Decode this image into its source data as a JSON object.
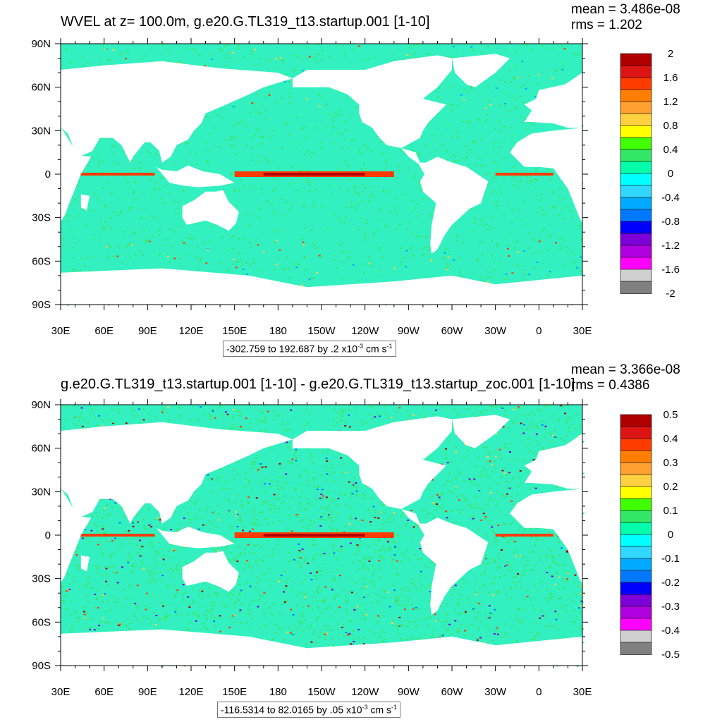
{
  "panels": [
    {
      "title": "WVEL at z= 100.0m, g.e20.G.TL319_t13.startup.001 [1-10]",
      "mean": "mean = 3.486e-08",
      "rms": "rms = 1.202",
      "range_text": "-302.759 to 192.687 by .2 x10",
      "range_exp": "-3",
      "range_unit": " cm s",
      "range_unit_exp": "-1",
      "colorbar_labels": [
        "2",
        "1.6",
        "1.2",
        "0.8",
        "0.4",
        "0",
        "-0.4",
        "-0.8",
        "-1.2",
        "-1.6",
        "-2"
      ]
    },
    {
      "title": "g.e20.G.TL319_t13.startup.001 [1-10] - g.e20.G.TL319_t13.startup_zoc.001 [1-10]",
      "mean": "mean = 3.366e-08",
      "rms": "rms = 0.4386",
      "range_text": "-116.5314 to 82.0165 by .05 x10",
      "range_exp": "-3",
      "range_unit": " cm s",
      "range_unit_exp": "-1",
      "colorbar_labels": [
        "0.5",
        "0.4",
        "0.3",
        "0.2",
        "0.1",
        "0",
        "-0.1",
        "-0.2",
        "-0.3",
        "-0.4",
        "-0.5"
      ]
    }
  ],
  "lat_labels": [
    "90N",
    "60N",
    "30N",
    "0",
    "30S",
    "60S",
    "90S"
  ],
  "lon_labels": [
    "30E",
    "60E",
    "90E",
    "120E",
    "150E",
    "180",
    "150W",
    "120W",
    "90W",
    "60W",
    "30W",
    "0",
    "30E"
  ],
  "colorbar_colors": [
    "#b00000",
    "#dc1414",
    "#ff3b00",
    "#ff7e00",
    "#ffa030",
    "#ffd040",
    "#ffff00",
    "#40ff00",
    "#33e866",
    "#00ffaa",
    "#00ffff",
    "#30d8ff",
    "#00aaff",
    "#0078ff",
    "#0000ff",
    "#7d00d8",
    "#b000e0",
    "#ff00ff",
    "#d0d0d0",
    "#808080"
  ],
  "field_colors": {
    "ocean": "#33f0c0",
    "equator_warm": "#ff3b00",
    "equator_core": "#b00000",
    "noise_cool": "#3fe66a",
    "land": "#ffffff"
  }
}
